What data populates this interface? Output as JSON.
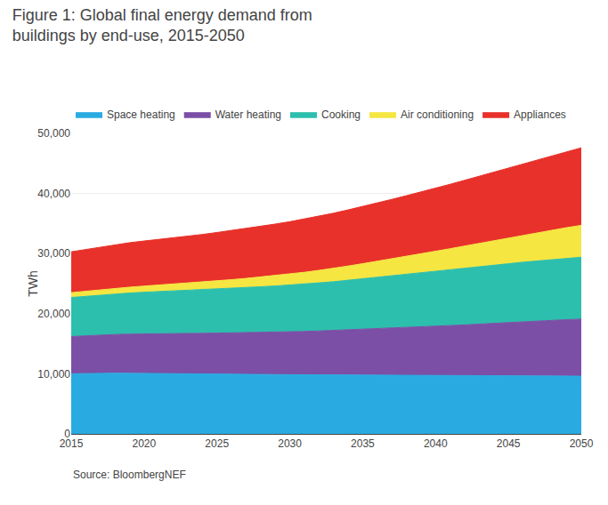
{
  "chart_data": {
    "type": "area",
    "stacked": true,
    "title": "Figure 1: Global final energy demand from\nbuildings by end-use, 2015-2050",
    "ylabel": "TWh",
    "annotations": [
      "Source: BloombergNEF"
    ],
    "x": [
      2015,
      2016,
      2017,
      2018,
      2019,
      2020,
      2021,
      2022,
      2023,
      2024,
      2025,
      2026,
      2027,
      2028,
      2029,
      2030,
      2031,
      2032,
      2033,
      2034,
      2035,
      2036,
      2037,
      2038,
      2039,
      2040,
      2041,
      2042,
      2043,
      2044,
      2045,
      2046,
      2047,
      2048,
      2049,
      2050
    ],
    "series": [
      {
        "name": "Space heating",
        "color": "#29ABE2",
        "values": [
          10000,
          10050,
          10080,
          10100,
          10080,
          10050,
          10020,
          9990,
          9960,
          9940,
          9920,
          9900,
          9880,
          9870,
          9860,
          9850,
          9840,
          9830,
          9820,
          9810,
          9800,
          9790,
          9780,
          9770,
          9760,
          9750,
          9740,
          9730,
          9720,
          9710,
          9700,
          9690,
          9680,
          9670,
          9660,
          9600
        ]
      },
      {
        "name": "Water heating",
        "color": "#7B4FA6",
        "values": [
          6200,
          6280,
          6360,
          6440,
          6520,
          6600,
          6650,
          6700,
          6750,
          6800,
          6850,
          6900,
          6950,
          7000,
          7050,
          7100,
          7200,
          7300,
          7400,
          7500,
          7600,
          7700,
          7800,
          7900,
          8000,
          8100,
          8250,
          8400,
          8550,
          8700,
          8850,
          9000,
          9100,
          9200,
          9350,
          9500
        ]
      },
      {
        "name": "Cooking",
        "color": "#2DBFAD",
        "values": [
          6500,
          6580,
          6660,
          6750,
          6840,
          6920,
          7000,
          7080,
          7160,
          7250,
          7340,
          7430,
          7520,
          7610,
          7700,
          7800,
          7900,
          8000,
          8100,
          8250,
          8400,
          8550,
          8700,
          8850,
          9000,
          9150,
          9280,
          9400,
          9520,
          9640,
          9760,
          9880,
          10000,
          10100,
          10200,
          10300
        ]
      },
      {
        "name": "Air conditioning",
        "color": "#F5E642",
        "values": [
          800,
          840,
          880,
          920,
          970,
          1020,
          1080,
          1140,
          1200,
          1270,
          1350,
          1430,
          1520,
          1620,
          1720,
          1830,
          1950,
          2080,
          2220,
          2370,
          2520,
          2680,
          2840,
          3010,
          3180,
          3360,
          3540,
          3730,
          3920,
          4110,
          4310,
          4510,
          4710,
          4910,
          5110,
          5300
        ]
      },
      {
        "name": "Appliances",
        "color": "#E8312A",
        "values": [
          6800,
          6950,
          7100,
          7250,
          7400,
          7500,
          7600,
          7700,
          7800,
          7920,
          8050,
          8180,
          8320,
          8450,
          8580,
          8720,
          8870,
          9020,
          9180,
          9340,
          9500,
          9700,
          9900,
          10100,
          10300,
          10500,
          10720,
          10940,
          11160,
          11380,
          11600,
          11850,
          12100,
          12350,
          12600,
          12900
        ]
      }
    ],
    "xlim": [
      2015,
      2050
    ],
    "xticks": [
      2015,
      2020,
      2025,
      2030,
      2035,
      2040,
      2045,
      2050
    ],
    "ylim": [
      0,
      50000
    ],
    "yticks": [
      0,
      {
        "value": 10000,
        "label": "10,000"
      },
      {
        "value": 20000,
        "label": "20,000"
      },
      {
        "value": 30000,
        "label": "30,000"
      },
      {
        "value": 40000,
        "label": "40,000"
      },
      {
        "value": 50000,
        "label": "50,000"
      }
    ],
    "grid": true,
    "legend": "top"
  }
}
